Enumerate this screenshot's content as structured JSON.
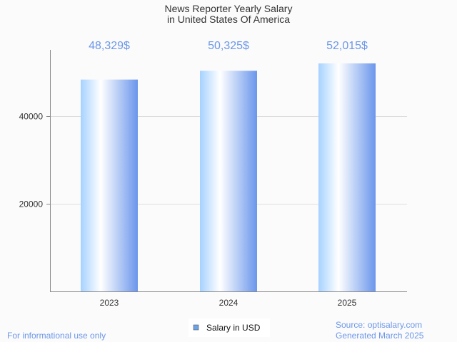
{
  "chart_data": {
    "type": "bar",
    "title": "News Reporter Yearly Salary",
    "subtitle": "in United States Of America",
    "categories": [
      "2023",
      "2024",
      "2025"
    ],
    "series": [
      {
        "name": "Salary in USD",
        "values": [
          48329,
          50325,
          52015
        ]
      }
    ],
    "data_labels": [
      "48,329$",
      "50,325$",
      "52,015$"
    ],
    "yticks": [
      20000,
      40000
    ],
    "ytick_labels": [
      "20000",
      "40000"
    ],
    "ylim": [
      0,
      55100
    ],
    "xlabel": "",
    "ylabel": "",
    "grid": true,
    "legend": "bottom-center"
  },
  "footer": {
    "left": "For informational use only",
    "source": "Source: optisalary.com",
    "generated": "Generated March 2025"
  },
  "colors": {
    "label": "#6c97e8",
    "bar_dark": "#6a96ec",
    "bar_light": "#a6d2ff",
    "legend_swatch": "#6aa3e6"
  }
}
